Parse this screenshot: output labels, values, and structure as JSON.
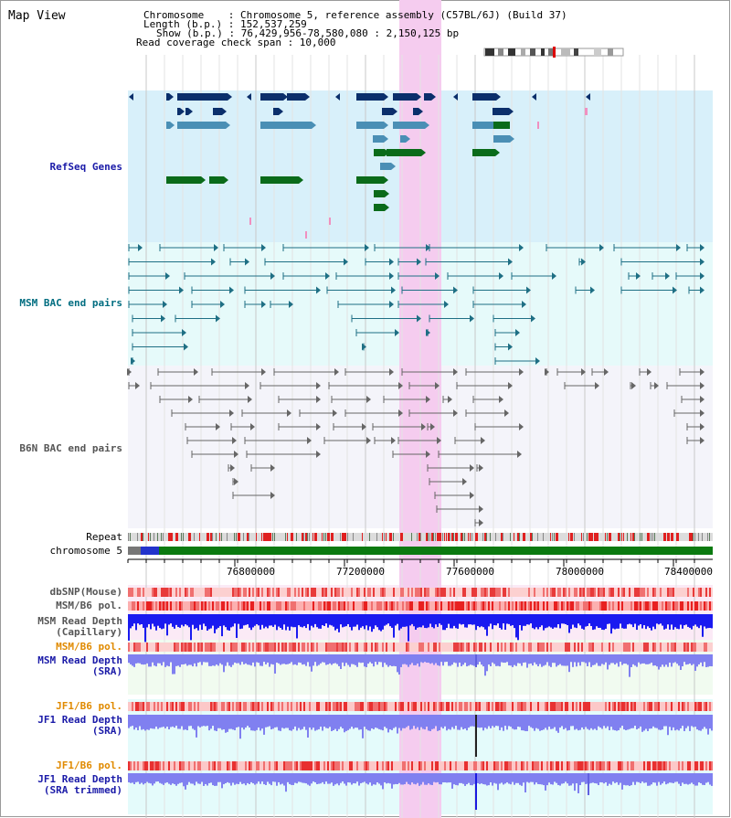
{
  "map": {
    "title": "Map View"
  },
  "info": {
    "chromosome": "Chromosome    : Chromosome 5, reference assembly (C57BL/6J) (Build 37)",
    "length": "Length (b.p.) : 152,537,259",
    "show": "Show (b.p.) : 76,429,956-78,580,080 : 2,150,125 bp",
    "coverage": "Read coverage check span : 10,000"
  },
  "tracks": {
    "refseq": "RefSeq Genes",
    "msm_bac": "MSM BAC end pairs",
    "b6n_bac": "B6N BAC end pairs",
    "repeat": "Repeat",
    "chromosome": "chromosome 5",
    "dbsnp": "dbSNP(Mouse)",
    "msm_pol_1": "MSM/B6 pol.",
    "msm_depth_cap_1": "MSM Read Depth",
    "msm_depth_cap_2": "(Capillary)",
    "msm_pol_2": "MSM/B6 pol.",
    "msm_depth_sra_1": "MSM Read Depth",
    "msm_depth_sra_2": "(SRA)",
    "jf1_pol_1": "JF1/B6 pol.",
    "jf1_depth_sra_1": "JF1 Read Depth",
    "jf1_depth_sra_2": "(SRA)",
    "jf1_pol_2": "JF1/B6 pol.",
    "jf1_depth_trim_1": "JF1 Read Depth",
    "jf1_depth_trim_2": "(SRA trimmed)"
  },
  "axis": {
    "ticks": [
      "76800000",
      "77200000",
      "77600000",
      "78000000",
      "78400000"
    ],
    "range": [
      76429956,
      78580080
    ]
  },
  "colors": {
    "refseq_dark": "#0b2f6b",
    "refseq_mid": "#4a8fb5",
    "refseq_green": "#0a6b1a",
    "msm_line": "#1e6f84",
    "b6n_line": "#666666",
    "highlight": "#f5ccef",
    "label_blue": "#00008b",
    "label_orange": "#e08a00",
    "label_teal": "#006d80"
  }
}
